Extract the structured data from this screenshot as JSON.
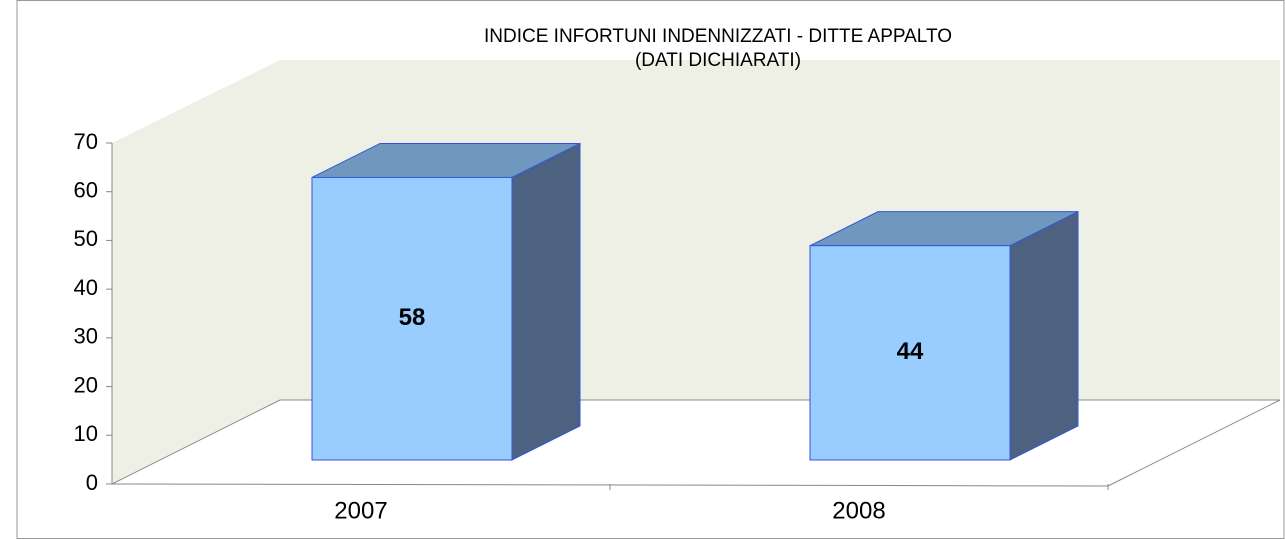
{
  "chart_data": {
    "type": "bar3d",
    "title": [
      "INDICE INFORTUNI INDENNIZZATI - DITTE APPALTO",
      "(DATI DICHIARATI)"
    ],
    "categories": [
      "2007",
      "2008"
    ],
    "values": [
      58,
      44
    ],
    "color": "#99ccff",
    "ylim": [
      0,
      70
    ],
    "yticks": [
      0,
      10,
      20,
      30,
      40,
      50,
      60,
      70
    ],
    "data_labels": true
  }
}
